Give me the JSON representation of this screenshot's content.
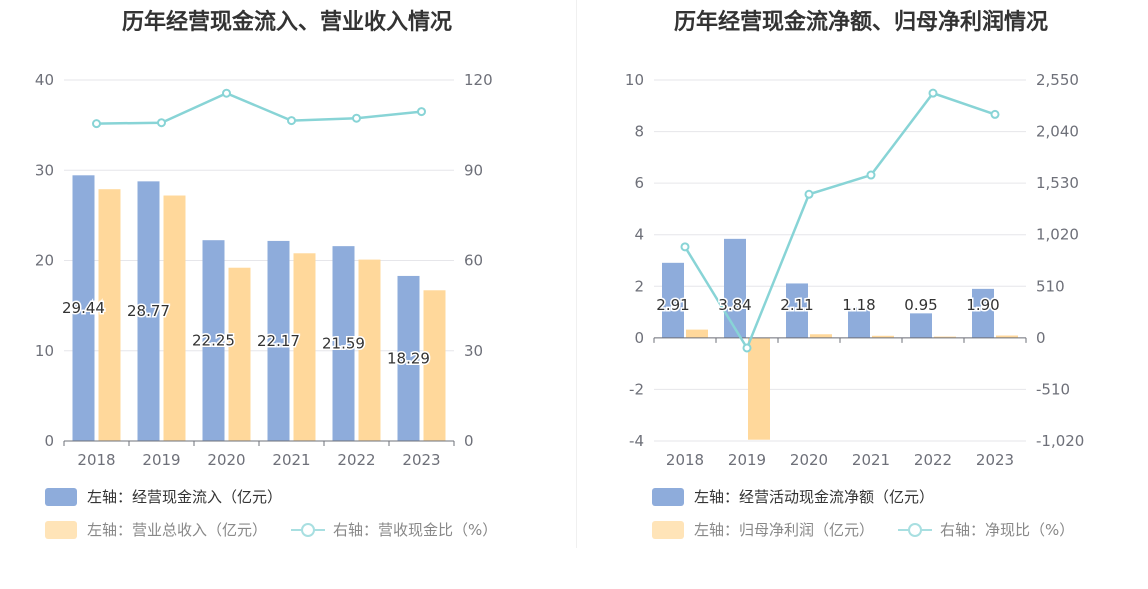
{
  "chart_data": [
    {
      "type": "bar",
      "title": "历年经营现金流入、营业收入情况",
      "categories": [
        "2018",
        "2019",
        "2020",
        "2021",
        "2022",
        "2023"
      ],
      "left_axis": {
        "ylim": [
          0,
          40
        ],
        "ticks": [
          "40",
          "30",
          "20",
          "10",
          "0"
        ],
        "tick_values": [
          40,
          30,
          20,
          10,
          0
        ]
      },
      "right_axis": {
        "ylim": [
          0,
          120
        ],
        "ticks": [
          "120",
          "90",
          "60",
          "30",
          "0"
        ],
        "tick_values": [
          120,
          90,
          60,
          30,
          0
        ]
      },
      "series": [
        {
          "name": "左轴：经营现金流入（亿元）",
          "type": "bar",
          "axis": "left",
          "color": "#8eacdb",
          "values": [
            29.44,
            28.77,
            22.25,
            22.17,
            21.59,
            18.29
          ],
          "labels": [
            "29.44",
            "28.77",
            "22.25",
            "22.17",
            "21.59",
            "18.29"
          ]
        },
        {
          "name": "左轴：营业总收入（亿元）",
          "type": "bar",
          "axis": "left",
          "color": "#ffd89b",
          "values": [
            27.9,
            27.2,
            19.2,
            20.8,
            20.1,
            16.7
          ]
        },
        {
          "name": "右轴：营收现金比（%）",
          "type": "line",
          "axis": "right",
          "color": "#88d4d6",
          "values": [
            105.5,
            105.8,
            115.6,
            106.5,
            107.3,
            109.5
          ]
        }
      ],
      "grid": true,
      "legend_position": "bottom-left"
    },
    {
      "type": "bar",
      "title": "历年经营现金流净额、归母净利润情况",
      "categories": [
        "2018",
        "2019",
        "2020",
        "2021",
        "2022",
        "2023"
      ],
      "left_axis": {
        "ylim": [
          -4,
          10
        ],
        "ticks": [
          "10",
          "8",
          "6",
          "4",
          "2",
          "0",
          "-2",
          "-4"
        ],
        "tick_values": [
          10,
          8,
          6,
          4,
          2,
          0,
          -2,
          -4
        ]
      },
      "right_axis": {
        "ylim": [
          -1020,
          2550
        ],
        "ticks": [
          "2,550",
          "2,040",
          "1,530",
          "1,020",
          "510",
          "0",
          "-510",
          "-1,020"
        ],
        "tick_values": [
          2550,
          2040,
          1530,
          1020,
          510,
          0,
          -510,
          -1020
        ]
      },
      "series": [
        {
          "name": "左轴：经营活动现金流净额（亿元）",
          "type": "bar",
          "axis": "left",
          "color": "#8eacdb",
          "values": [
            2.91,
            3.84,
            2.11,
            1.18,
            0.95,
            1.9
          ],
          "labels": [
            "2.91",
            "3.84",
            "2.11",
            "1.18",
            "0.95",
            "1.90"
          ]
        },
        {
          "name": "左轴：归母净利润（亿元）",
          "type": "bar",
          "axis": "left",
          "color": "#ffd89b",
          "values": [
            0.32,
            -3.95,
            0.14,
            0.08,
            0.05,
            0.09
          ]
        },
        {
          "name": "右轴：净现比（%）",
          "type": "line",
          "axis": "right",
          "color": "#88d4d6",
          "values": [
            900,
            -100,
            1420,
            1610,
            2420,
            2210
          ]
        }
      ],
      "grid": true,
      "legend_position": "bottom-left"
    }
  ]
}
